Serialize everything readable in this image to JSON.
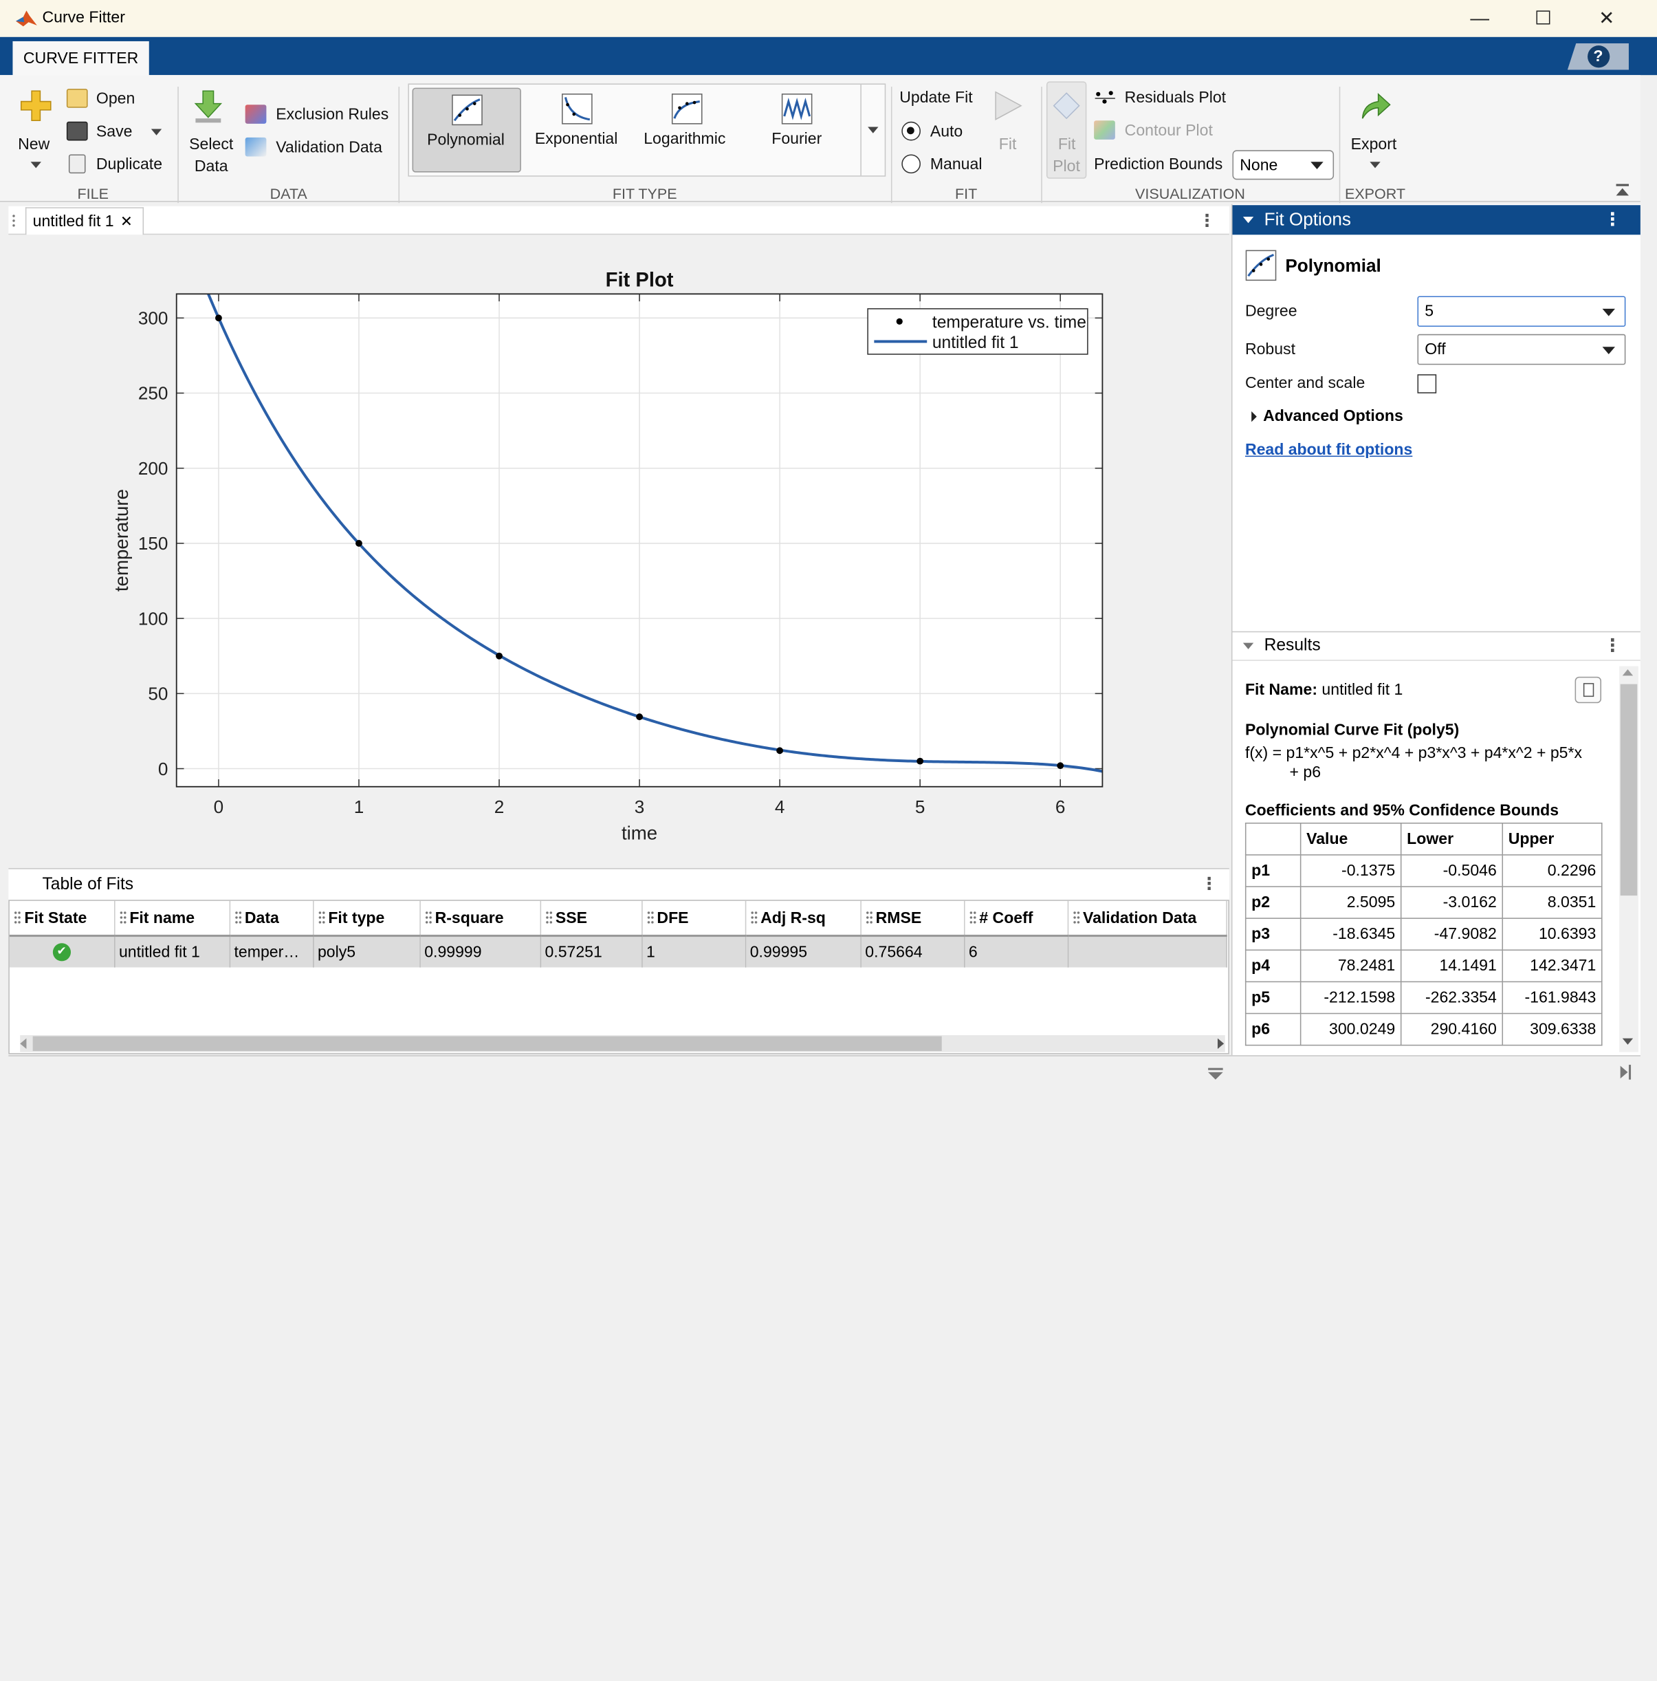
{
  "window": {
    "title": "Curve Fitter",
    "minimize": "—",
    "maximize": "☐",
    "close": "✕"
  },
  "tabs": {
    "active": "CURVE FITTER",
    "help": "?"
  },
  "ribbon": {
    "file": {
      "group": "FILE",
      "new": "New",
      "open": "Open",
      "save": "Save",
      "duplicate": "Duplicate"
    },
    "data": {
      "group": "DATA",
      "select_line1": "Select",
      "select_line2": "Data",
      "exclusion": "Exclusion Rules",
      "validation": "Validation Data"
    },
    "fit_type": {
      "group": "FIT TYPE",
      "items": [
        "Polynomial",
        "Exponential",
        "Logarithmic",
        "Fourier"
      ],
      "selected": "Polynomial"
    },
    "fit": {
      "group": "FIT",
      "update": "Update Fit",
      "auto": "Auto",
      "manual": "Manual",
      "fit_btn": "Fit",
      "auto_selected": true
    },
    "visualization": {
      "group": "VISUALIZATION",
      "fit_plot_line1": "Fit",
      "fit_plot_line2": "Plot",
      "residuals": "Residuals Plot",
      "contour": "Contour Plot",
      "pred_bounds_label": "Prediction Bounds",
      "pred_bounds_value": "None"
    },
    "export": {
      "group": "EXPORT",
      "export": "Export"
    }
  },
  "document": {
    "tab": "untitled fit 1",
    "tab_close": "✕"
  },
  "chart_data": {
    "type": "scatter",
    "title": "Fit Plot",
    "xlabel": "time",
    "ylabel": "temperature",
    "xlim": [
      -0.3,
      6.3
    ],
    "ylim": [
      -12,
      316
    ],
    "xticks": [
      0,
      1,
      2,
      3,
      4,
      5,
      6
    ],
    "yticks": [
      0,
      50,
      100,
      150,
      200,
      250,
      300
    ],
    "grid": true,
    "legend_position": "top-right",
    "series": [
      {
        "name": "temperature vs. time",
        "kind": "points",
        "color": "#000000",
        "x": [
          0,
          1,
          2,
          3,
          4,
          5,
          6
        ],
        "y": [
          300,
          150,
          75,
          34.5,
          12,
          5,
          2
        ]
      },
      {
        "name": "untitled fit 1",
        "kind": "line",
        "color": "#2a5fa8",
        "coefficients": [
          -0.1375,
          2.5095,
          -18.6345,
          78.2481,
          -212.1598,
          300.0249
        ]
      }
    ]
  },
  "table_of_fits": {
    "title": "Table of Fits",
    "columns": [
      "Fit State",
      "Fit name",
      "Data",
      "Fit type",
      "R-square",
      "SSE",
      "DFE",
      "Adj R-sq",
      "RMSE",
      "# Coeff",
      "Validation Data"
    ],
    "rows": [
      [
        "✔",
        "untitled fit 1",
        "temper…",
        "poly5",
        "0.99999",
        "0.57251",
        "1",
        "0.99995",
        "0.75664",
        "6",
        ""
      ]
    ]
  },
  "fit_options": {
    "title": "Fit Options",
    "fit_type": "Polynomial",
    "degree_label": "Degree",
    "degree_value": "5",
    "robust_label": "Robust",
    "robust_value": "Off",
    "center_label": "Center and scale",
    "advanced": "Advanced Options",
    "read_link": "Read about fit options"
  },
  "results": {
    "title": "Results",
    "fit_name_label": "Fit Name:",
    "fit_name": "untitled fit 1",
    "model_title": "Polynomial Curve Fit (poly5)",
    "formula_line1": "f(x) = p1*x^5 + p2*x^4 + p3*x^3 + p4*x^2 + p5*x",
    "formula_line2": "+ p6",
    "coef_title": "Coefficients and 95% Confidence Bounds",
    "headers": [
      "",
      "Value",
      "Lower",
      "Upper"
    ],
    "rows": [
      [
        "p1",
        "-0.1375",
        "-0.5046",
        "0.2296"
      ],
      [
        "p2",
        "2.5095",
        "-3.0162",
        "8.0351"
      ],
      [
        "p3",
        "-18.6345",
        "-47.9082",
        "10.6393"
      ],
      [
        "p4",
        "78.2481",
        "14.1491",
        "142.3471"
      ],
      [
        "p5",
        "-212.1598",
        "-262.3354",
        "-161.9843"
      ],
      [
        "p6",
        "300.0249",
        "290.4160",
        "309.6338"
      ]
    ]
  },
  "colors": {
    "accent": "#0e4a8a",
    "fit_line": "#2a5fa8",
    "link": "#1a56b8"
  }
}
